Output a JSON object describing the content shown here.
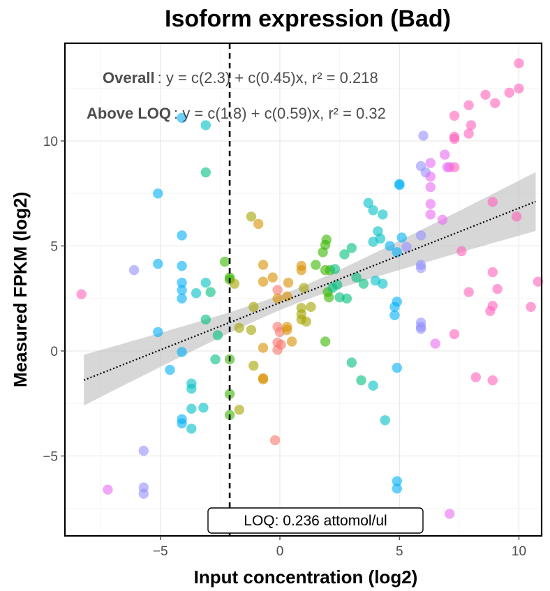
{
  "chart_data": {
    "type": "scatter",
    "title": "Isoform expression (Bad)",
    "xlabel": "Input concentration (log2)",
    "ylabel": "Measured FPKM (log2)",
    "xlim": [
      -9.2,
      11.0
    ],
    "ylim": [
      -8.8,
      14.8
    ],
    "x_ticks": [
      -5,
      0,
      5,
      10
    ],
    "y_ticks": [
      -5,
      0,
      5,
      10
    ],
    "x_tick_labels": [
      "−5",
      "0",
      "5",
      "10"
    ],
    "y_tick_labels": [
      "−5",
      "0",
      "5",
      "10"
    ],
    "grid": true,
    "legend": "none",
    "annotations": {
      "overall_label": "Overall",
      "overall_equation": ": y = c(2.3) + c(0.45)x,  r² = 0.218",
      "above_label": "Above LOQ",
      "above_equation": ": y = c(1.8) + c(0.59)x,  r² = 0.32"
    },
    "loq": {
      "x": -2.1,
      "label": "LOQ: 0.236 attomol/ul"
    },
    "regression": {
      "intercept": 2.3,
      "slope": 0.45,
      "x_range": [
        -8.2,
        10.7
      ],
      "ci_halfwidth_ends": 1.4,
      "ci_halfwidth_center": 0.35,
      "ci_center_x": 0.5
    },
    "point_colors": [
      "#f8766d",
      "#d89000",
      "#a3a500",
      "#39b600",
      "#00bf7d",
      "#00bfc4",
      "#00b0f6",
      "#9590ff",
      "#e76bf3",
      "#ff62bc"
    ],
    "points": [
      {
        "x": -8.3,
        "y": 2.7,
        "c": 9
      },
      {
        "x": -7.2,
        "y": -6.6,
        "c": 8
      },
      {
        "x": -6.1,
        "y": 3.85,
        "c": 7
      },
      {
        "x": -5.7,
        "y": -4.75,
        "c": 7
      },
      {
        "x": -5.7,
        "y": -6.5,
        "c": 7
      },
      {
        "x": -5.7,
        "y": -6.8,
        "c": 7
      },
      {
        "x": -5.1,
        "y": 7.5,
        "c": 6
      },
      {
        "x": -5.1,
        "y": 4.15,
        "c": 6
      },
      {
        "x": -5.1,
        "y": 0.9,
        "c": 6
      },
      {
        "x": -4.6,
        "y": -0.9,
        "c": 6
      },
      {
        "x": -4.1,
        "y": 11.1,
        "c": 6
      },
      {
        "x": -4.1,
        "y": 5.5,
        "c": 6
      },
      {
        "x": -4.1,
        "y": 4.05,
        "c": 6
      },
      {
        "x": -4.1,
        "y": 3.25,
        "c": 6
      },
      {
        "x": -4.1,
        "y": 2.9,
        "c": 6
      },
      {
        "x": -4.1,
        "y": 2.5,
        "c": 6
      },
      {
        "x": -4.1,
        "y": -0.05,
        "c": 6
      },
      {
        "x": -4.1,
        "y": -3.25,
        "c": 6
      },
      {
        "x": -4.1,
        "y": -3.45,
        "c": 6
      },
      {
        "x": -3.7,
        "y": -1.55,
        "c": 5
      },
      {
        "x": -3.7,
        "y": -1.8,
        "c": 5
      },
      {
        "x": -3.7,
        "y": -2.75,
        "c": 5
      },
      {
        "x": -3.7,
        "y": -3.7,
        "c": 5
      },
      {
        "x": -3.5,
        "y": 2.75,
        "c": 5
      },
      {
        "x": -3.2,
        "y": -2.7,
        "c": 5
      },
      {
        "x": -3.1,
        "y": 10.75,
        "c": 5
      },
      {
        "x": -3.1,
        "y": 8.5,
        "c": 4
      },
      {
        "x": -3.1,
        "y": 3.25,
        "c": 5
      },
      {
        "x": -3.1,
        "y": 1.5,
        "c": 4
      },
      {
        "x": -2.9,
        "y": 2.8,
        "c": 4
      },
      {
        "x": -2.7,
        "y": -0.4,
        "c": 4
      },
      {
        "x": -2.6,
        "y": 0.75,
        "c": 4
      },
      {
        "x": -2.3,
        "y": 4.25,
        "c": 3
      },
      {
        "x": -2.1,
        "y": 3.5,
        "c": 3
      },
      {
        "x": -2.1,
        "y": 3.4,
        "c": 3
      },
      {
        "x": -2.1,
        "y": -0.4,
        "c": 3
      },
      {
        "x": -2.1,
        "y": -2.05,
        "c": 3
      },
      {
        "x": -2.1,
        "y": -3.05,
        "c": 3
      },
      {
        "x": -1.9,
        "y": 3.2,
        "c": 2
      },
      {
        "x": -1.7,
        "y": 1.1,
        "c": 2
      },
      {
        "x": -1.7,
        "y": -2.8,
        "c": 2
      },
      {
        "x": -1.2,
        "y": 1.0,
        "c": 2
      },
      {
        "x": -1.2,
        "y": 6.4,
        "c": 2
      },
      {
        "x": -0.9,
        "y": 6.05,
        "c": 1
      },
      {
        "x": -1.1,
        "y": 2.1,
        "c": 2
      },
      {
        "x": -1.1,
        "y": -0.7,
        "c": 2
      },
      {
        "x": -0.7,
        "y": 4.1,
        "c": 1
      },
      {
        "x": -0.7,
        "y": 3.3,
        "c": 1
      },
      {
        "x": -0.7,
        "y": 0.15,
        "c": 1
      },
      {
        "x": -0.7,
        "y": -1.3,
        "c": 1
      },
      {
        "x": -0.7,
        "y": -1.35,
        "c": 1
      },
      {
        "x": -0.3,
        "y": 3.5,
        "c": 1
      },
      {
        "x": -0.2,
        "y": -4.25,
        "c": 0
      },
      {
        "x": -0.1,
        "y": 2.9,
        "c": 0
      },
      {
        "x": -0.1,
        "y": 2.5,
        "c": 1
      },
      {
        "x": -0.1,
        "y": 1.15,
        "c": 0
      },
      {
        "x": 0.0,
        "y": 0.9,
        "c": 0
      },
      {
        "x": -0.1,
        "y": 0.4,
        "c": 0
      },
      {
        "x": -0.1,
        "y": 0.05,
        "c": 0
      },
      {
        "x": 0.05,
        "y": 0.3,
        "c": 0
      },
      {
        "x": 0.3,
        "y": 2.6,
        "c": 1
      },
      {
        "x": 0.3,
        "y": 1.15,
        "c": 1
      },
      {
        "x": 0.3,
        "y": 1.0,
        "c": 1
      },
      {
        "x": 0.35,
        "y": 3.25,
        "c": 1
      },
      {
        "x": 0.5,
        "y": 0.45,
        "c": 1
      },
      {
        "x": 0.9,
        "y": 4.05,
        "c": 1
      },
      {
        "x": 0.9,
        "y": 3.85,
        "c": 1
      },
      {
        "x": 0.9,
        "y": 2.05,
        "c": 2
      },
      {
        "x": 0.9,
        "y": 1.75,
        "c": 2
      },
      {
        "x": 0.9,
        "y": 1.5,
        "c": 2
      },
      {
        "x": 1.0,
        "y": 3.0,
        "c": 2
      },
      {
        "x": 1.1,
        "y": 1.4,
        "c": 2
      },
      {
        "x": 1.3,
        "y": 2.1,
        "c": 2
      },
      {
        "x": 1.5,
        "y": 4.1,
        "c": 3
      },
      {
        "x": 1.8,
        "y": 4.7,
        "c": 3
      },
      {
        "x": 1.9,
        "y": 5.05,
        "c": 3
      },
      {
        "x": 1.9,
        "y": 3.85,
        "c": 3
      },
      {
        "x": 1.9,
        "y": 0.45,
        "c": 3
      },
      {
        "x": 1.95,
        "y": 5.3,
        "c": 3
      },
      {
        "x": 2.0,
        "y": 2.8,
        "c": 3
      },
      {
        "x": 2.05,
        "y": 2.55,
        "c": 3
      },
      {
        "x": 2.1,
        "y": 3.85,
        "c": 3
      },
      {
        "x": 2.2,
        "y": 3.0,
        "c": 4
      },
      {
        "x": 2.3,
        "y": 3.9,
        "c": 4
      },
      {
        "x": 2.4,
        "y": 3.15,
        "c": 4
      },
      {
        "x": 2.5,
        "y": 2.55,
        "c": 4
      },
      {
        "x": 2.7,
        "y": 4.6,
        "c": 4
      },
      {
        "x": 2.8,
        "y": 2.5,
        "c": 4
      },
      {
        "x": 3.0,
        "y": 4.9,
        "c": 4
      },
      {
        "x": 3.0,
        "y": -0.55,
        "c": 4
      },
      {
        "x": 3.2,
        "y": 3.5,
        "c": 4
      },
      {
        "x": 3.4,
        "y": -1.4,
        "c": 4
      },
      {
        "x": 3.5,
        "y": 3.2,
        "c": 4
      },
      {
        "x": 3.7,
        "y": 7.05,
        "c": 5
      },
      {
        "x": 3.9,
        "y": 6.7,
        "c": 5
      },
      {
        "x": 3.9,
        "y": 5.2,
        "c": 5
      },
      {
        "x": 3.9,
        "y": -1.65,
        "c": 5
      },
      {
        "x": 4.0,
        "y": 3.35,
        "c": 5
      },
      {
        "x": 4.1,
        "y": 5.7,
        "c": 5
      },
      {
        "x": 4.2,
        "y": 5.35,
        "c": 5
      },
      {
        "x": 4.3,
        "y": 6.5,
        "c": 5
      },
      {
        "x": 4.3,
        "y": 3.2,
        "c": 5
      },
      {
        "x": 4.4,
        "y": -3.3,
        "c": 5
      },
      {
        "x": 4.6,
        "y": 5.0,
        "c": 6
      },
      {
        "x": 4.8,
        "y": 2.1,
        "c": 6
      },
      {
        "x": 4.8,
        "y": 1.7,
        "c": 6
      },
      {
        "x": 4.9,
        "y": 4.7,
        "c": 6
      },
      {
        "x": 4.9,
        "y": 2.35,
        "c": 6
      },
      {
        "x": 4.9,
        "y": -0.8,
        "c": 6
      },
      {
        "x": 4.9,
        "y": -6.2,
        "c": 6
      },
      {
        "x": 4.9,
        "y": -6.55,
        "c": 6
      },
      {
        "x": 5.0,
        "y": 7.95,
        "c": 6
      },
      {
        "x": 5.0,
        "y": 7.9,
        "c": 6
      },
      {
        "x": 5.1,
        "y": 5.4,
        "c": 6
      },
      {
        "x": 5.3,
        "y": 4.95,
        "c": 7
      },
      {
        "x": 5.9,
        "y": 8.8,
        "c": 7
      },
      {
        "x": 5.9,
        "y": 5.5,
        "c": 7
      },
      {
        "x": 5.9,
        "y": 4.1,
        "c": 7
      },
      {
        "x": 5.9,
        "y": 3.95,
        "c": 7
      },
      {
        "x": 5.9,
        "y": 1.35,
        "c": 7
      },
      {
        "x": 5.9,
        "y": 1.15,
        "c": 7
      },
      {
        "x": 5.9,
        "y": 1.05,
        "c": 7
      },
      {
        "x": 6.0,
        "y": 10.25,
        "c": 7
      },
      {
        "x": 6.1,
        "y": 8.5,
        "c": 7
      },
      {
        "x": 6.3,
        "y": 8.95,
        "c": 8
      },
      {
        "x": 6.3,
        "y": 8.3,
        "c": 8
      },
      {
        "x": 6.3,
        "y": 7.8,
        "c": 8
      },
      {
        "x": 6.3,
        "y": 7.0,
        "c": 8
      },
      {
        "x": 6.3,
        "y": 6.5,
        "c": 8
      },
      {
        "x": 6.5,
        "y": 0.35,
        "c": 8
      },
      {
        "x": 6.8,
        "y": 6.25,
        "c": 8
      },
      {
        "x": 6.9,
        "y": 9.35,
        "c": 8
      },
      {
        "x": 7.0,
        "y": 8.75,
        "c": 8
      },
      {
        "x": 7.1,
        "y": 8.75,
        "c": 8
      },
      {
        "x": 7.1,
        "y": -7.75,
        "c": 8
      },
      {
        "x": 7.3,
        "y": 11.2,
        "c": 9
      },
      {
        "x": 7.3,
        "y": 10.2,
        "c": 9
      },
      {
        "x": 7.3,
        "y": 10.1,
        "c": 9
      },
      {
        "x": 7.3,
        "y": 8.75,
        "c": 9
      },
      {
        "x": 7.3,
        "y": 0.8,
        "c": 9
      },
      {
        "x": 7.6,
        "y": 4.75,
        "c": 9
      },
      {
        "x": 7.9,
        "y": 11.7,
        "c": 9
      },
      {
        "x": 7.9,
        "y": 10.35,
        "c": 9
      },
      {
        "x": 8.0,
        "y": 10.75,
        "c": 9
      },
      {
        "x": 7.9,
        "y": 2.8,
        "c": 9
      },
      {
        "x": 8.2,
        "y": -1.25,
        "c": 9
      },
      {
        "x": 8.6,
        "y": 12.2,
        "c": 9
      },
      {
        "x": 8.8,
        "y": 1.9,
        "c": 9
      },
      {
        "x": 8.9,
        "y": 7.1,
        "c": 9
      },
      {
        "x": 8.9,
        "y": 3.75,
        "c": 9
      },
      {
        "x": 8.9,
        "y": 2.15,
        "c": 9
      },
      {
        "x": 8.9,
        "y": -1.4,
        "c": 9
      },
      {
        "x": 9.0,
        "y": 11.8,
        "c": 9
      },
      {
        "x": 9.1,
        "y": 2.95,
        "c": 9
      },
      {
        "x": 9.6,
        "y": 12.3,
        "c": 9
      },
      {
        "x": 9.9,
        "y": 6.4,
        "c": 9
      },
      {
        "x": 10.0,
        "y": 13.7,
        "c": 9
      },
      {
        "x": 10.0,
        "y": 12.5,
        "c": 9
      },
      {
        "x": 10.5,
        "y": 2.1,
        "c": 9
      },
      {
        "x": 10.8,
        "y": 3.3,
        "c": 9
      }
    ]
  }
}
